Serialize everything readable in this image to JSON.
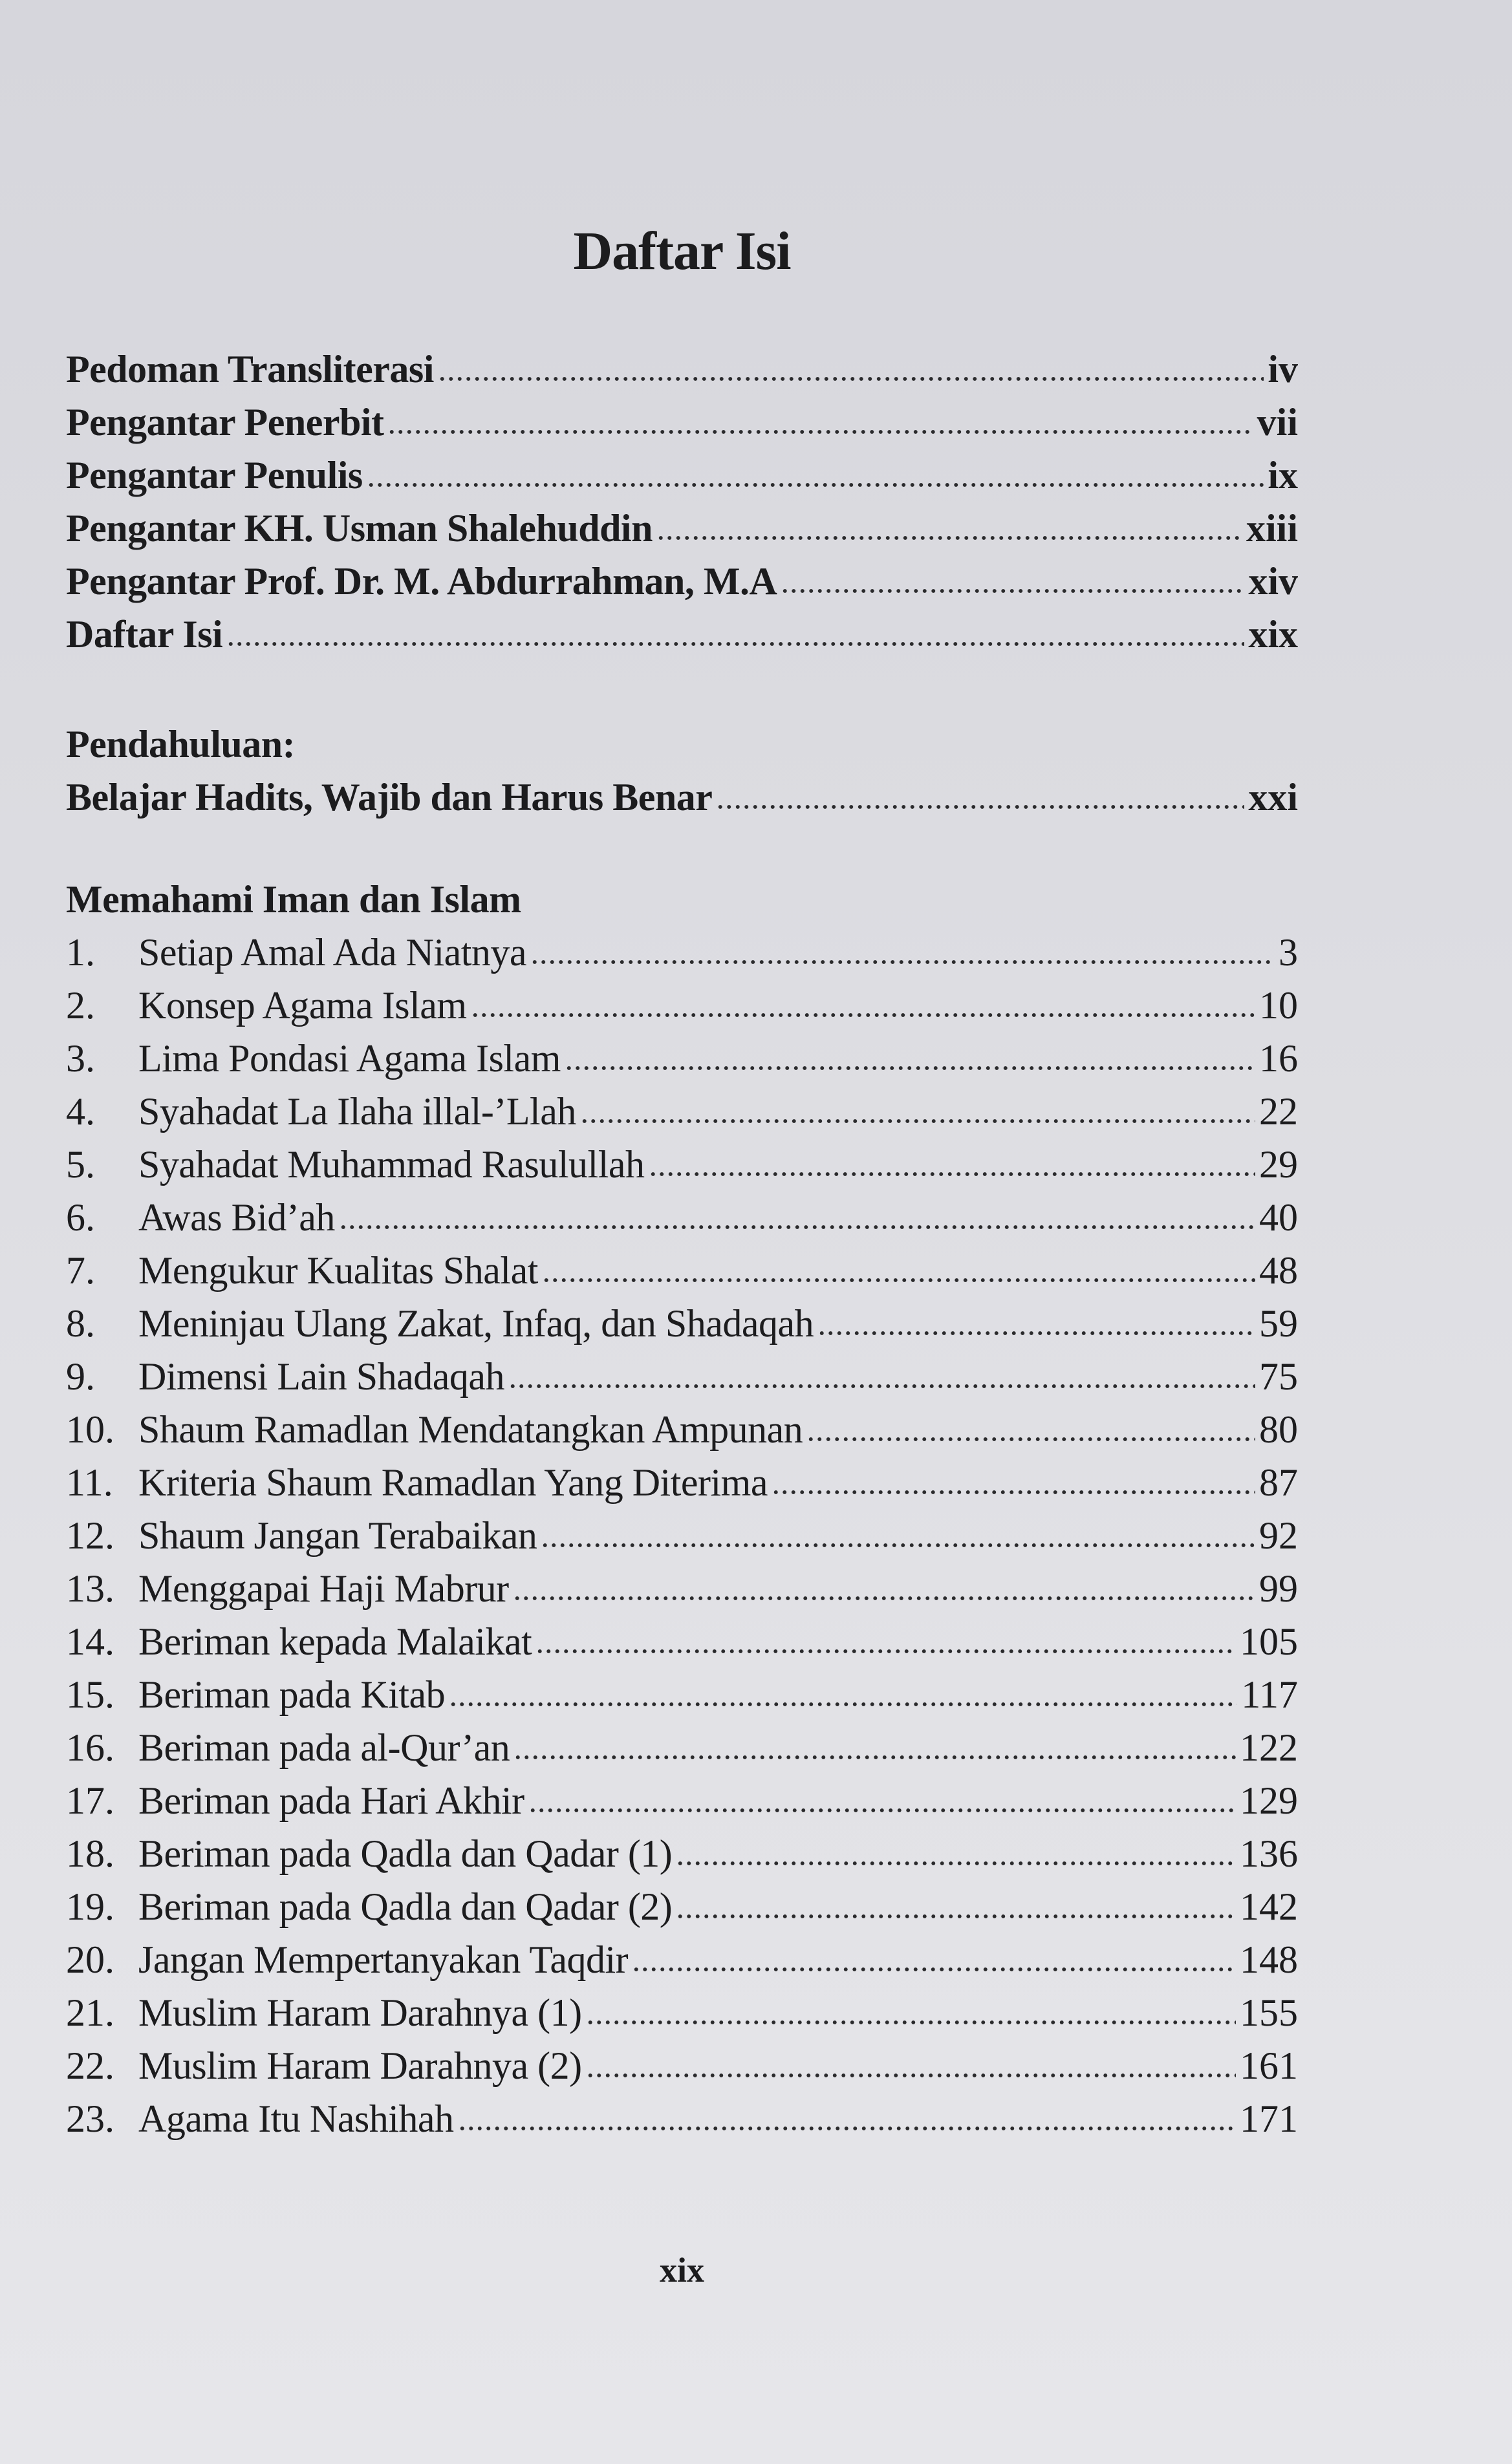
{
  "title": "Daftar Isi",
  "front_matter": [
    {
      "label": "Pedoman Transliterasi",
      "page": "iv"
    },
    {
      "label": "Pengantar Penerbit",
      "page": "vii"
    },
    {
      "label": "Pengantar Penulis",
      "page": "ix"
    },
    {
      "label": "Pengantar KH. Usman Shalehuddin",
      "page": "xiii"
    },
    {
      "label": "Pengantar Prof. Dr. M. Abdurrahman, M.A",
      "page": "xiv"
    },
    {
      "label": "Daftar Isi",
      "page": "xix"
    }
  ],
  "introduction": {
    "heading": "Pendahuluan:",
    "label": "Belajar Hadits, Wajib dan Harus Benar",
    "page": "xxi"
  },
  "section": {
    "heading": "Memahami Iman dan Islam",
    "items": [
      {
        "num": "1.",
        "label": "Setiap Amal Ada Niatnya",
        "page": "3"
      },
      {
        "num": "2.",
        "label": "Konsep Agama Islam",
        "page": "10"
      },
      {
        "num": "3.",
        "label": "Lima Pondasi Agama Islam",
        "page": "16"
      },
      {
        "num": "4.",
        "label": "Syahadat La Ilaha illal-’Llah",
        "page": "22"
      },
      {
        "num": "5.",
        "label": "Syahadat Muhammad Rasulullah",
        "page": "29"
      },
      {
        "num": "6.",
        "label": "Awas Bid’ah",
        "page": "40"
      },
      {
        "num": "7.",
        "label": "Mengukur Kualitas Shalat",
        "page": "48"
      },
      {
        "num": "8.",
        "label": "Meninjau Ulang Zakat, Infaq, dan Shadaqah",
        "page": "59"
      },
      {
        "num": "9.",
        "label": "Dimensi Lain Shadaqah",
        "page": "75"
      },
      {
        "num": "10.",
        "label": "Shaum Ramadlan Mendatangkan Ampunan",
        "page": "80"
      },
      {
        "num": "11.",
        "label": "Kriteria Shaum Ramadlan Yang Diterima",
        "page": "87"
      },
      {
        "num": "12.",
        "label": "Shaum Jangan Terabaikan",
        "page": "92"
      },
      {
        "num": "13.",
        "label": "Menggapai Haji Mabrur",
        "page": "99"
      },
      {
        "num": "14.",
        "label": "Beriman kepada Malaikat",
        "page": "105"
      },
      {
        "num": "15.",
        "label": "Beriman pada Kitab",
        "page": "117"
      },
      {
        "num": "16.",
        "label": "Beriman pada al-Qur’an",
        "page": "122"
      },
      {
        "num": "17.",
        "label": "Beriman pada Hari Akhir",
        "page": "129"
      },
      {
        "num": "18.",
        "label": "Beriman pada Qadla dan Qadar (1)",
        "page": "136"
      },
      {
        "num": "19.",
        "label": "Beriman pada Qadla dan Qadar (2)",
        "page": "142"
      },
      {
        "num": "20.",
        "label": "Jangan Mempertanyakan Taqdir",
        "page": "148"
      },
      {
        "num": "21.",
        "label": "Muslim Haram Darahnya (1)",
        "page": "155"
      },
      {
        "num": "22.",
        "label": "Muslim Haram Darahnya (2)",
        "page": "161"
      },
      {
        "num": "23.",
        "label": "Agama Itu Nashihah",
        "page": "171"
      }
    ]
  },
  "folio": "xix"
}
